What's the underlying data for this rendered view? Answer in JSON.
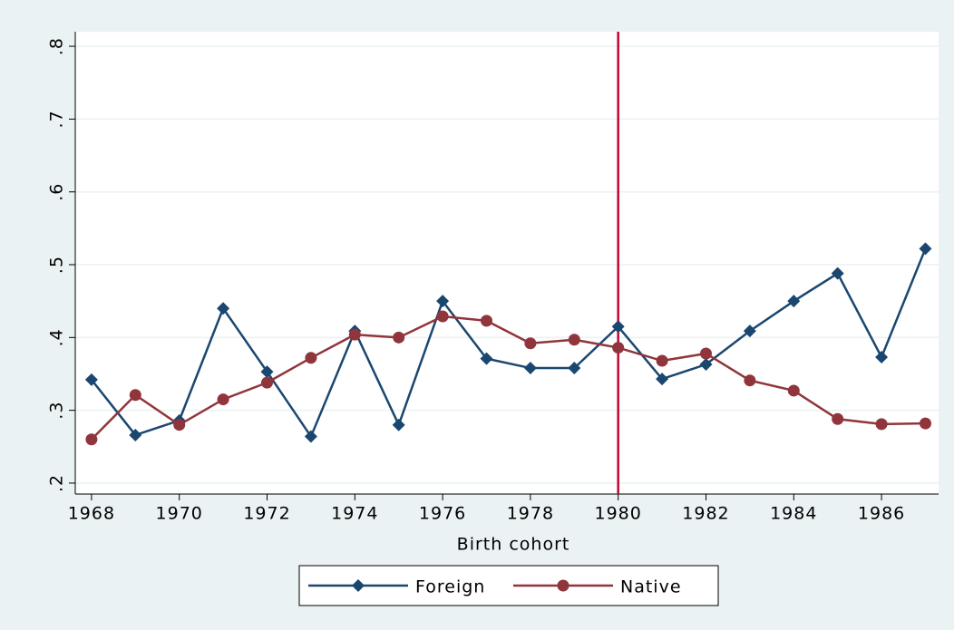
{
  "chart_data": {
    "type": "line",
    "x_label": "Birth cohort",
    "x": [
      1968,
      1969,
      1970,
      1971,
      1972,
      1973,
      1974,
      1975,
      1976,
      1977,
      1978,
      1979,
      1980,
      1981,
      1982,
      1983,
      1984,
      1985,
      1986,
      1987
    ],
    "series": [
      {
        "name": "Foreign",
        "color": "#1a476f",
        "marker": "diamond",
        "values": [
          0.342,
          0.266,
          0.286,
          0.44,
          0.353,
          0.264,
          0.409,
          0.28,
          0.45,
          0.371,
          0.358,
          0.358,
          0.415,
          0.343,
          0.363,
          0.409,
          0.45,
          0.488,
          0.373,
          0.522
        ]
      },
      {
        "name": "Native",
        "color": "#90353b",
        "marker": "circle",
        "values": [
          0.26,
          0.321,
          0.28,
          0.315,
          0.338,
          0.372,
          0.404,
          0.4,
          0.429,
          0.423,
          0.392,
          0.397,
          0.386,
          0.368,
          0.378,
          0.341,
          0.327,
          0.288,
          0.281,
          0.282
        ]
      }
    ],
    "xlim": [
      1967.63,
      1987.3
    ],
    "xticks": [
      1968,
      1970,
      1972,
      1974,
      1976,
      1978,
      1980,
      1982,
      1984,
      1986
    ],
    "ylim": [
      0.185,
      0.82
    ],
    "yticks": [
      {
        "value": 0.2,
        "label": ".2"
      },
      {
        "value": 0.3,
        "label": ".3"
      },
      {
        "value": 0.4,
        "label": ".4"
      },
      {
        "value": 0.5,
        "label": ".5"
      },
      {
        "value": 0.6,
        "label": ".6"
      },
      {
        "value": 0.7,
        "label": ".7"
      },
      {
        "value": 0.8,
        "label": ".8"
      }
    ],
    "grid": true,
    "xline": {
      "value": 1980,
      "color": "#c10534"
    },
    "legend": "bottom"
  }
}
